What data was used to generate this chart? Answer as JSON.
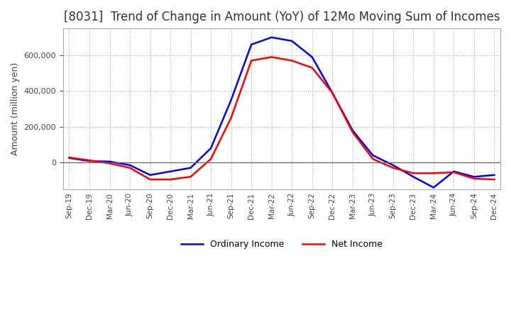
{
  "title": "[8031]  Trend of Change in Amount (YoY) of 12Mo Moving Sum of Incomes",
  "ylabel": "Amount (million yen)",
  "x_labels": [
    "Sep-19",
    "Dec-19",
    "Mar-20",
    "Jun-20",
    "Sep-20",
    "Dec-20",
    "Mar-21",
    "Jun-21",
    "Sep-21",
    "Dec-21",
    "Mar-22",
    "Jun-22",
    "Sep-22",
    "Dec-22",
    "Mar-23",
    "Jun-23",
    "Sep-23",
    "Dec-23",
    "Mar-24",
    "Jun-24",
    "Sep-24",
    "Dec-24"
  ],
  "ordinary_income": [
    25000,
    8000,
    5000,
    -15000,
    -70000,
    -50000,
    -30000,
    80000,
    350000,
    660000,
    700000,
    680000,
    590000,
    390000,
    180000,
    40000,
    -15000,
    -80000,
    -140000,
    -50000,
    -80000,
    -70000
  ],
  "net_income": [
    28000,
    12000,
    -5000,
    -30000,
    -95000,
    -95000,
    -80000,
    20000,
    250000,
    570000,
    590000,
    570000,
    530000,
    390000,
    170000,
    20000,
    -30000,
    -60000,
    -60000,
    -55000,
    -90000,
    -95000
  ],
  "ordinary_color": "#0000ff",
  "net_color": "#ff0000",
  "background_color": "#ffffff",
  "grid_color": "#aaaaaa",
  "yticks": [
    0,
    200000,
    400000,
    600000
  ],
  "ylim": [
    -150000,
    750000
  ],
  "title_fontsize": 12,
  "legend_labels": [
    "Ordinary Income",
    "Net Income"
  ],
  "line_width": 1.8
}
